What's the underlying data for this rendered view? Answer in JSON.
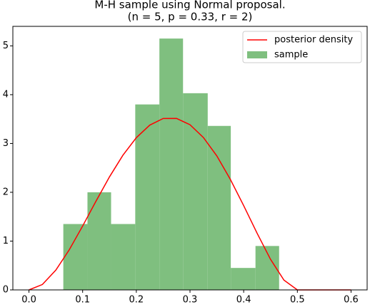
{
  "chart_data": {
    "type": "histogram",
    "title": "M-H sample using Normal proposal.",
    "subtitle": "(n = 5, p = 0.33, r = 2)",
    "xlim": [
      -0.03,
      0.63
    ],
    "ylim": [
      0,
      5.4
    ],
    "xticks": [
      {
        "value": 0,
        "label": "0.0"
      },
      0.1,
      0.2,
      0.3,
      0.4,
      0.5,
      0.6
    ],
    "yticks": [
      0,
      1,
      2,
      3,
      4,
      5
    ],
    "legend": "upper right",
    "series": [
      {
        "name": "posterior density",
        "type": "line",
        "color": "#ff0000",
        "x": [
          0,
          0.025,
          0.05,
          0.075,
          0.1,
          0.125,
          0.15,
          0.175,
          0.2,
          0.225,
          0.25,
          0.275,
          0.3,
          0.325,
          0.35,
          0.375,
          0.4,
          0.425,
          0.45,
          0.475,
          0.5,
          0.525,
          0.55,
          0.575,
          0.6
        ],
        "values": [
          0,
          0.111,
          0.405,
          0.821,
          1.309,
          1.821,
          2.316,
          2.759,
          3.119,
          3.376,
          3.512,
          3.513,
          3.384,
          3.122,
          2.745,
          2.268,
          1.727,
          1.161,
          0.627,
          0.201,
          0,
          0,
          0,
          0,
          0
        ]
      },
      {
        "name": "sample",
        "type": "histogram",
        "color": "#7fbf7f",
        "bins": [
          0.064,
          0.109,
          0.153,
          0.198,
          0.243,
          0.287,
          0.333,
          0.376,
          0.422,
          0.466
        ],
        "values": [
          1.35,
          2.0,
          1.35,
          3.8,
          5.15,
          4.03,
          3.36,
          0.45,
          0.9
        ]
      }
    ]
  }
}
